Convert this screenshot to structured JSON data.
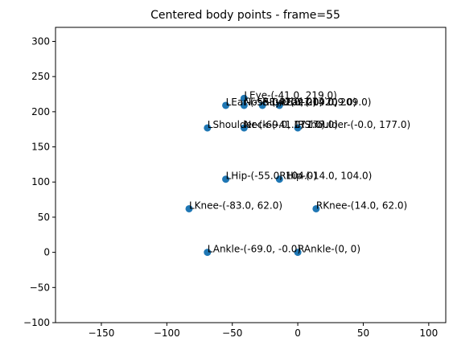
{
  "chart_data": {
    "type": "scatter",
    "title": "Centered body points - frame=55",
    "xlabel": "",
    "ylabel": "",
    "xlim": [
      -185,
      113
    ],
    "ylim": [
      -100,
      320
    ],
    "xticks": [
      -150,
      -100,
      -50,
      0,
      50,
      100
    ],
    "yticks": [
      -100,
      -50,
      0,
      50,
      100,
      150,
      200,
      250,
      300
    ],
    "xtick_labels": [
      "−150",
      "−100",
      "−50",
      "0",
      "50",
      "100"
    ],
    "ytick_labels": [
      "−100",
      "−50",
      "0",
      "50",
      "100",
      "150",
      "200",
      "250",
      "300"
    ],
    "grid": false,
    "color": "#1f77b4",
    "points": [
      {
        "name": "Nose",
        "x": -41,
        "y": 209,
        "label": "Nose-(-41.0, 209.0)"
      },
      {
        "name": "REye",
        "x": -27,
        "y": 209,
        "label": "REye-(-27.0, 209.0)"
      },
      {
        "name": "LEye",
        "x": -41,
        "y": 219,
        "label": "LEye-(-41.0, 219.0)"
      },
      {
        "name": "REar",
        "x": -14,
        "y": 209,
        "label": "REar-(-14.0, 209.0)"
      },
      {
        "name": "LEar",
        "x": -55,
        "y": 209,
        "label": "LEar-(-55.0, 209.0)"
      },
      {
        "name": "Neck",
        "x": -41,
        "y": 177,
        "label": "Neck-(-41.0, 177.0)"
      },
      {
        "name": "RShoulder",
        "x": 0,
        "y": 177,
        "label": "RShoulder-(-0.0, 177.0)"
      },
      {
        "name": "LShoulder",
        "x": -69,
        "y": 177,
        "label": "LShoulder-(-69.0, 177.0)"
      },
      {
        "name": "RHip",
        "x": -14,
        "y": 104,
        "label": "RHip-(-14.0, 104.0)"
      },
      {
        "name": "LHip",
        "x": -55,
        "y": 104,
        "label": "LHip-(-55.0, 104.0)"
      },
      {
        "name": "RKnee",
        "x": 14,
        "y": 62,
        "label": "RKnee-(14.0, 62.0)"
      },
      {
        "name": "LKnee",
        "x": -83,
        "y": 62,
        "label": "LKnee-(-83.0, 62.0)"
      },
      {
        "name": "RAnkle",
        "x": 0,
        "y": 0,
        "label": "RAnkle-(0, 0)"
      },
      {
        "name": "LAnkle",
        "x": -69,
        "y": 0,
        "label": "LAnkle-(-69.0, -0.0)"
      }
    ]
  }
}
